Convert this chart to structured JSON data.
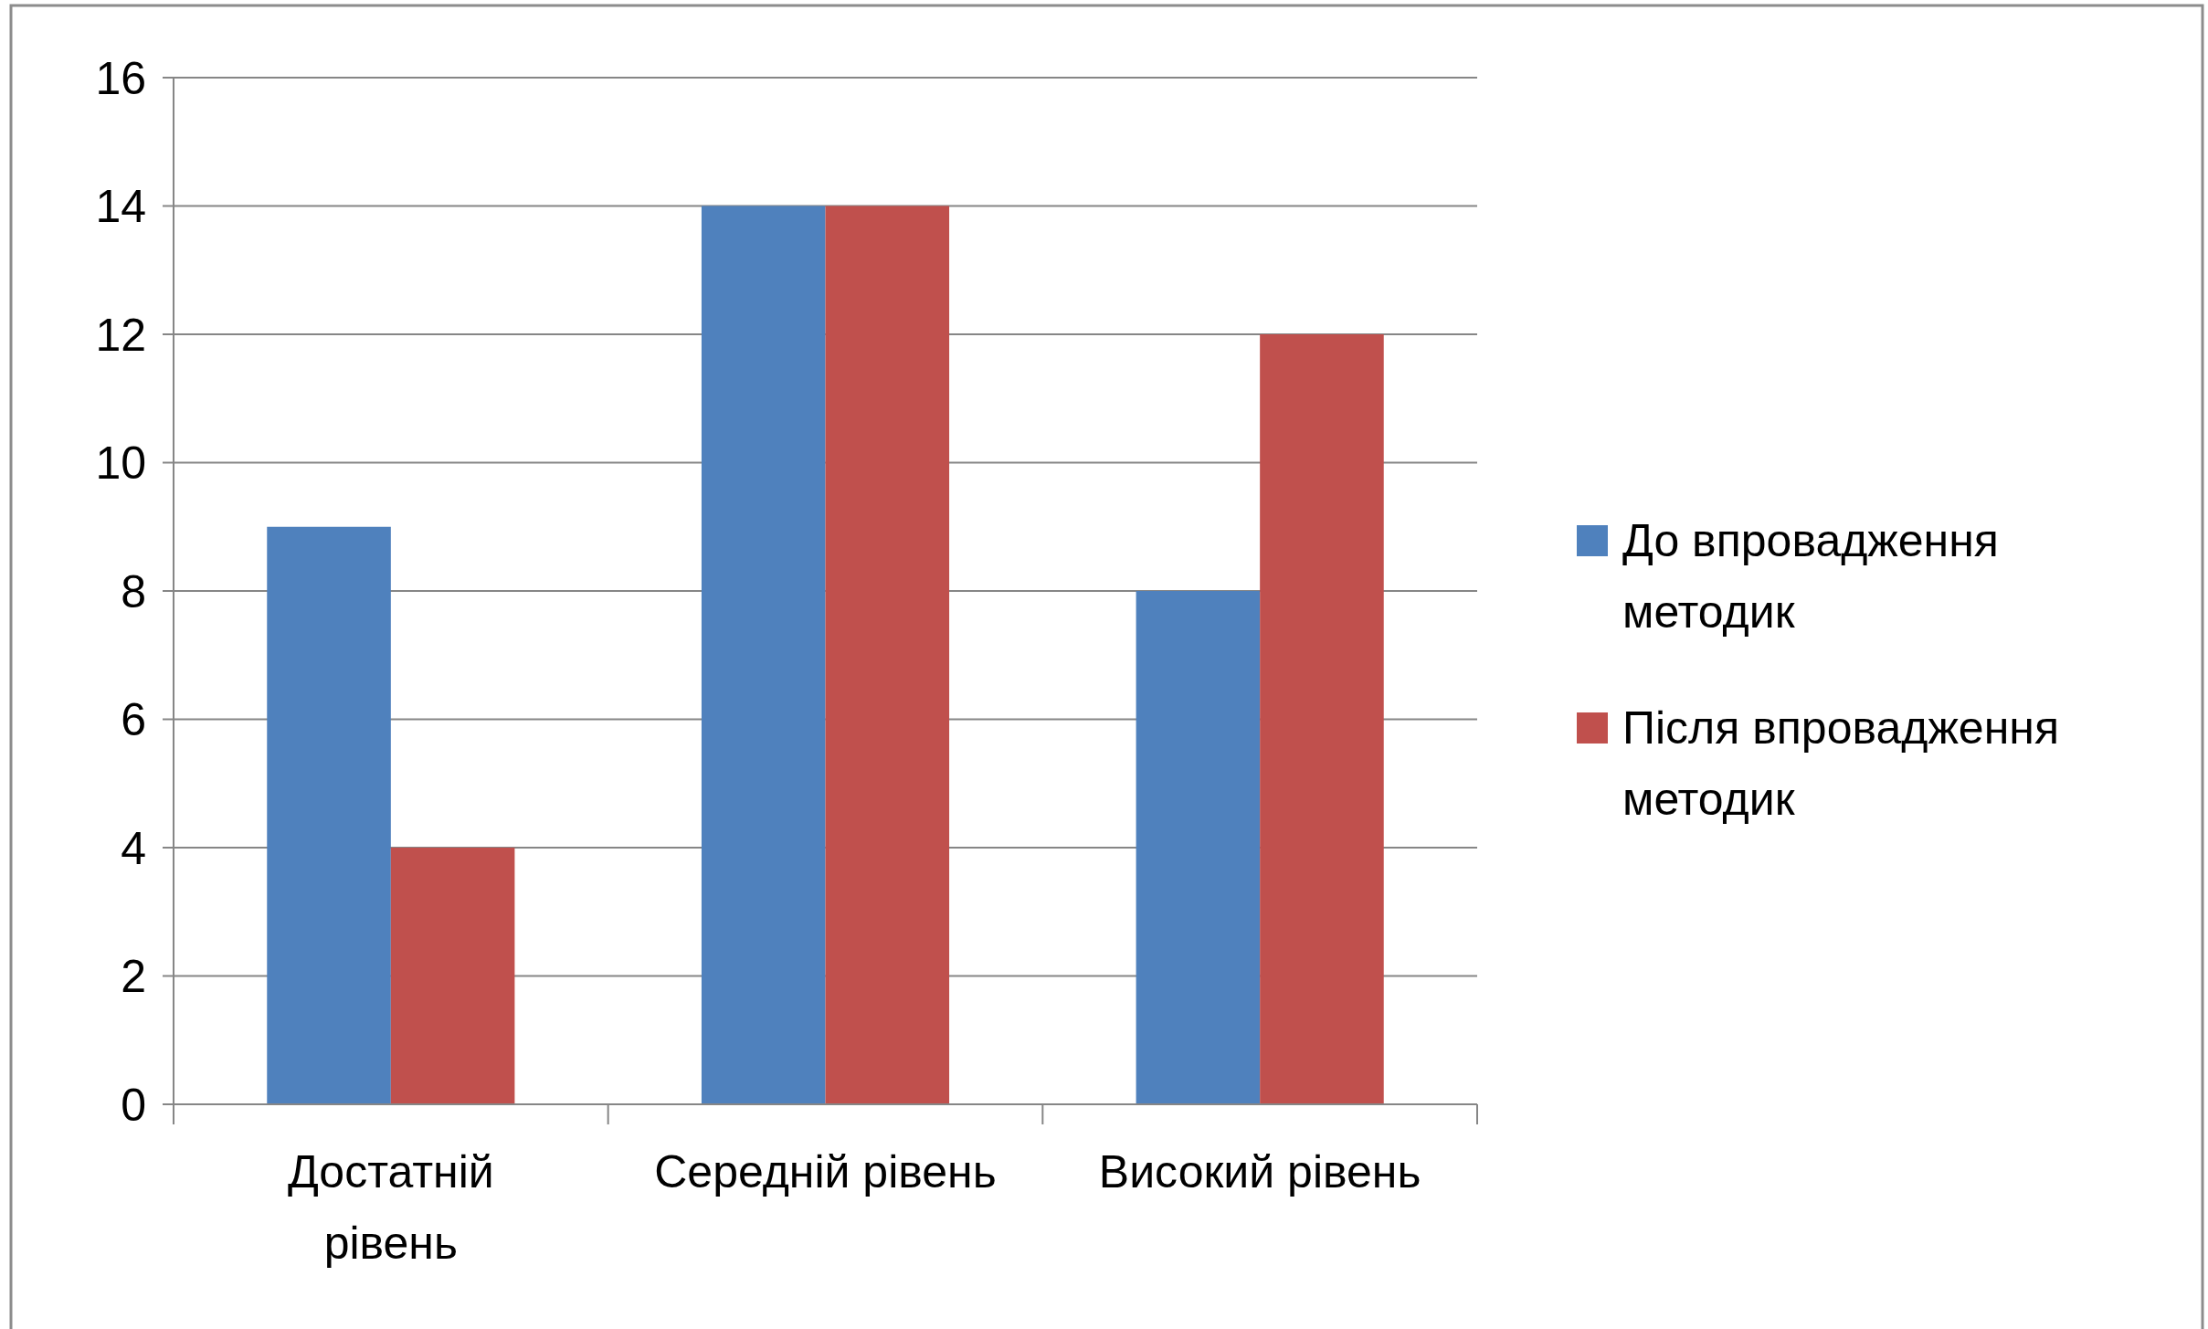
{
  "chart_data": {
    "type": "bar",
    "categories": [
      "Достатній рівень",
      "Середній рівень",
      "Високий рівень"
    ],
    "series": [
      {
        "name": "До впровадження методик",
        "color": "#4f81bd",
        "values": [
          9,
          14,
          8
        ]
      },
      {
        "name": "Після впровадження методик",
        "color": "#c0504d",
        "values": [
          4,
          14,
          12
        ]
      }
    ],
    "ylim": [
      0,
      16
    ],
    "yticks": [
      0,
      2,
      4,
      6,
      8,
      10,
      12,
      14,
      16
    ],
    "grid": "y",
    "legend": "right"
  }
}
